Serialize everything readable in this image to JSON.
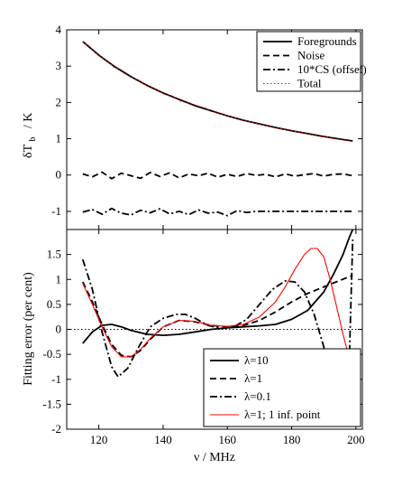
{
  "chart_data": [
    {
      "type": "line",
      "title": "",
      "ylabel_main": "δT",
      "ylabel_sub": "b",
      "ylabel_unit": "/ K",
      "xlim": [
        110,
        202
      ],
      "ylim": [
        -1.5,
        4
      ],
      "yticks": [
        -1,
        0,
        1,
        2,
        3,
        4
      ],
      "ytick_labels": [
        "-1",
        "0",
        "1",
        "2",
        "3",
        "4"
      ],
      "grid": false,
      "legend_position": "top-right",
      "series": [
        {
          "name": "Foregrounds",
          "style": "solid",
          "color": "#000000",
          "x": [
            115,
            120,
            125,
            130,
            135,
            140,
            145,
            150,
            155,
            160,
            165,
            170,
            175,
            180,
            185,
            190,
            195,
            199
          ],
          "y": [
            3.68,
            3.3,
            2.98,
            2.71,
            2.47,
            2.26,
            2.08,
            1.91,
            1.77,
            1.63,
            1.51,
            1.41,
            1.31,
            1.22,
            1.14,
            1.06,
            0.99,
            0.94
          ]
        },
        {
          "name": "Noise",
          "style": "dashed",
          "color": "#000000",
          "x": [
            115,
            118,
            121,
            124,
            127,
            130,
            133,
            136,
            139,
            142,
            145,
            148,
            151,
            154,
            157,
            160,
            163,
            166,
            169,
            172,
            175,
            178,
            181,
            184,
            187,
            190,
            193,
            196,
            199
          ],
          "y": [
            0.03,
            -0.05,
            0.08,
            -0.1,
            0.05,
            -0.02,
            -0.09,
            0.07,
            -0.04,
            0.06,
            -0.08,
            0.03,
            -0.02,
            0.05,
            -0.06,
            0.02,
            -0.04,
            0.04,
            -0.01,
            0.02,
            -0.05,
            0.03,
            -0.03,
            0.01,
            0.04,
            -0.03,
            0.02,
            0.03,
            -0.02
          ]
        },
        {
          "name": "10*CS (offset)",
          "style": "dashdot",
          "color": "#000000",
          "x": [
            115,
            118,
            121,
            124,
            127,
            130,
            133,
            136,
            139,
            142,
            145,
            148,
            151,
            154,
            157,
            160,
            163,
            166,
            169,
            172,
            175,
            180,
            185,
            190,
            195,
            199
          ],
          "y": [
            -1.02,
            -0.95,
            -1.08,
            -0.92,
            -1.05,
            -1.1,
            -0.97,
            -1.04,
            -0.93,
            -1.07,
            -1.0,
            -1.09,
            -0.96,
            -1.05,
            -1.02,
            -1.12,
            -0.98,
            -1.03,
            -1.0,
            -1.0,
            -1.0,
            -1.0,
            -1.0,
            -1.0,
            -1.0,
            -1.0
          ]
        },
        {
          "name": "Total",
          "style": "dotted",
          "color": "#ff0000",
          "x": [
            115,
            117,
            119,
            121,
            123,
            125,
            127,
            129,
            131,
            133,
            135,
            137,
            139,
            141,
            143,
            145,
            147,
            149,
            151,
            153,
            155,
            157,
            159,
            161,
            163,
            165,
            167,
            169,
            171,
            173,
            175,
            177,
            179,
            181,
            183,
            185,
            187,
            189,
            191,
            193,
            195,
            197,
            199
          ],
          "y": [
            3.66,
            3.55,
            3.36,
            3.24,
            3.12,
            2.95,
            2.9,
            2.78,
            2.66,
            2.58,
            2.45,
            2.4,
            2.3,
            2.2,
            2.18,
            2.05,
            2.0,
            1.96,
            1.9,
            1.85,
            1.75,
            1.72,
            1.65,
            1.6,
            1.55,
            1.5,
            1.47,
            1.42,
            1.38,
            1.35,
            1.3,
            1.27,
            1.23,
            1.2,
            1.17,
            1.13,
            1.1,
            1.06,
            1.04,
            1.0,
            0.98,
            0.95,
            0.93
          ]
        }
      ]
    },
    {
      "type": "line",
      "title": "",
      "xlabel": "ν / MHz",
      "ylabel": "Fitting error (per cent)",
      "xlim": [
        110,
        202
      ],
      "ylim": [
        -2,
        2
      ],
      "xticks": [
        120,
        140,
        160,
        180,
        200
      ],
      "xtick_labels": [
        "120",
        "140",
        "160",
        "180",
        "200"
      ],
      "yticks": [
        -2,
        -1.5,
        -1,
        -0.5,
        0,
        0.5,
        1,
        1.5
      ],
      "ytick_labels": [
        "-2",
        "-1.5",
        "-1",
        "-0.5",
        "0",
        "0.5",
        "1",
        "1.5"
      ],
      "grid": false,
      "legend_position": "bottom-right",
      "zero_line": true,
      "series": [
        {
          "name": "λ=10",
          "style": "solid",
          "color": "#000000",
          "x": [
            115,
            118,
            121,
            124,
            127,
            130,
            135,
            140,
            145,
            150,
            155,
            160,
            165,
            170,
            175,
            180,
            185,
            190,
            193,
            196,
            198,
            199
          ],
          "y": [
            -0.28,
            -0.05,
            0.08,
            0.1,
            0.05,
            -0.02,
            -0.1,
            -0.12,
            -0.1,
            -0.05,
            0.0,
            0.03,
            0.05,
            0.07,
            0.1,
            0.2,
            0.38,
            0.75,
            1.1,
            1.5,
            1.85,
            2.0
          ]
        },
        {
          "name": "λ=1",
          "style": "dashed",
          "color": "#000000",
          "x": [
            115,
            118,
            121,
            124,
            127,
            130,
            133,
            136,
            140,
            145,
            150,
            155,
            160,
            165,
            170,
            175,
            180,
            185,
            190,
            195,
            199
          ],
          "y": [
            0.95,
            0.55,
            0.1,
            -0.3,
            -0.52,
            -0.55,
            -0.42,
            -0.2,
            0.05,
            0.18,
            0.15,
            0.08,
            0.05,
            0.08,
            0.18,
            0.35,
            0.55,
            0.72,
            0.85,
            0.98,
            1.08
          ]
        },
        {
          "name": "λ=0.1",
          "style": "dashdot",
          "color": "#000000",
          "x": [
            115,
            118,
            121,
            124,
            126,
            129,
            132,
            136,
            140,
            144,
            147,
            150,
            154,
            158,
            162,
            166,
            170,
            174,
            178,
            181,
            184,
            187,
            190,
            193,
            195,
            197,
            198,
            199
          ],
          "y": [
            1.4,
            0.8,
            -0.05,
            -0.75,
            -0.95,
            -0.78,
            -0.4,
            0.05,
            0.22,
            0.3,
            0.3,
            0.22,
            0.08,
            0.02,
            0.05,
            0.2,
            0.5,
            0.8,
            0.97,
            0.95,
            0.75,
            0.3,
            -0.35,
            -1.1,
            -1.7,
            -1.9,
            -0.5,
            1.8
          ]
        },
        {
          "name": "λ=1; 1 inf. point",
          "style": "solid",
          "color": "#ff0000",
          "x": [
            115,
            118,
            121,
            124,
            127,
            130,
            133,
            136,
            140,
            145,
            150,
            155,
            160,
            165,
            170,
            175,
            178,
            181,
            184,
            186,
            188,
            190,
            192,
            194,
            196,
            198,
            199
          ],
          "y": [
            0.92,
            0.5,
            0.05,
            -0.35,
            -0.55,
            -0.55,
            -0.4,
            -0.18,
            0.05,
            0.18,
            0.16,
            0.08,
            0.06,
            0.1,
            0.25,
            0.55,
            0.85,
            1.2,
            1.5,
            1.62,
            1.62,
            1.45,
            1.0,
            0.45,
            -0.1,
            -0.6,
            -0.9
          ]
        }
      ]
    }
  ]
}
